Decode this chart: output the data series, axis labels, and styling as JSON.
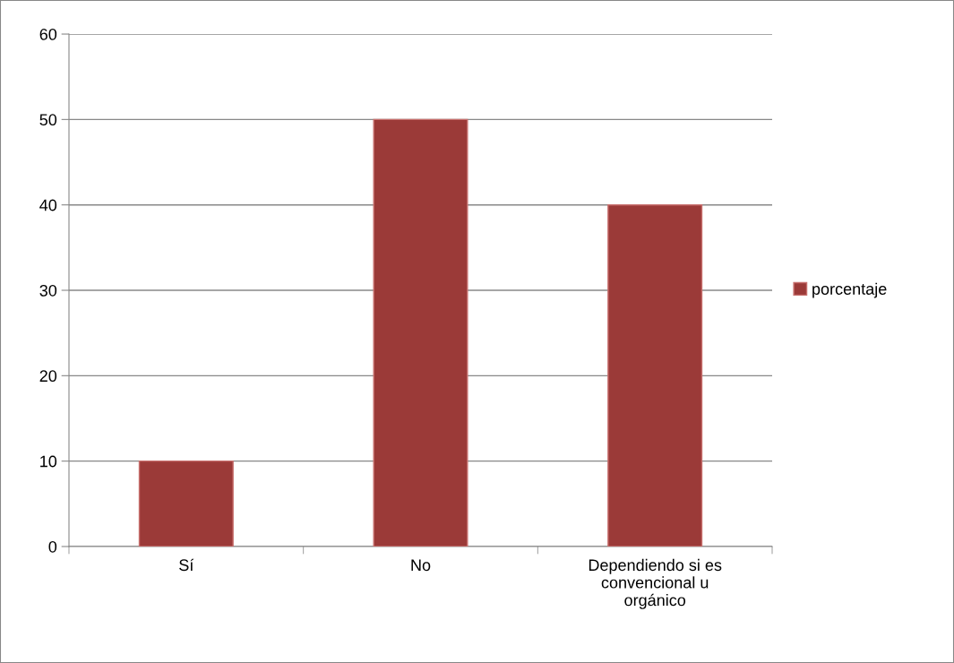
{
  "chart_data": {
    "type": "bar",
    "categories": [
      "Sí",
      "No",
      "Dependiendo si es\nconvencional u\norgánico"
    ],
    "series": [
      {
        "name": "porcentaje",
        "color": "#9b3a38",
        "values": [
          10,
          50,
          40
        ]
      }
    ],
    "ylim": [
      0,
      60
    ],
    "yticks": [
      0,
      10,
      20,
      30,
      40,
      50,
      60
    ],
    "grid": "y",
    "legend": "right"
  }
}
